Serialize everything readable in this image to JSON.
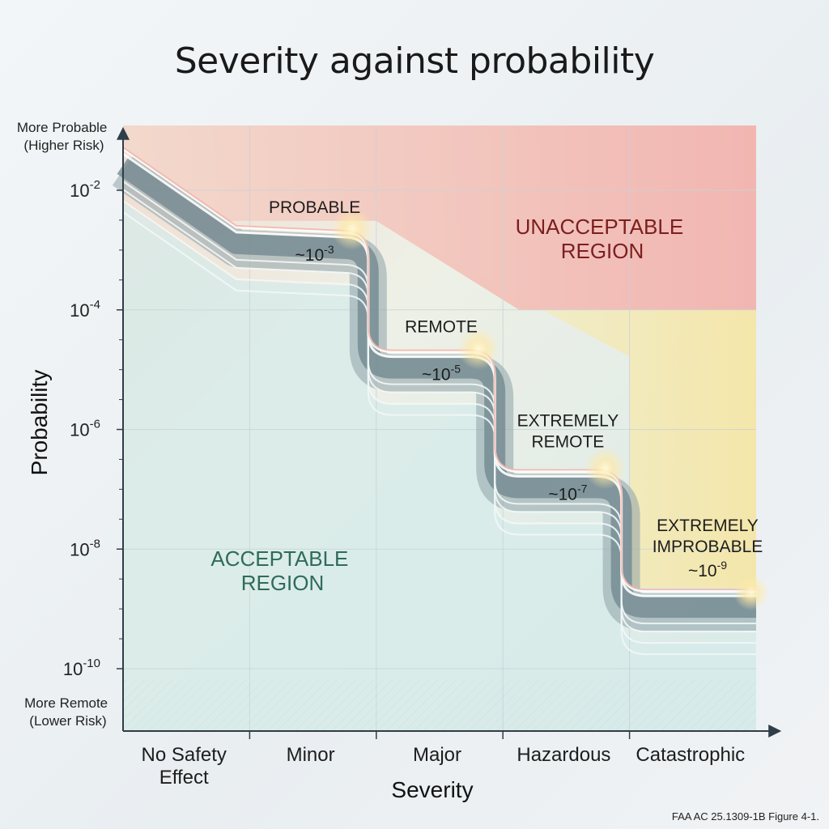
{
  "title": "Severity against probability",
  "source_note": "FAA AC 25.1309-1B Figure 4-1.",
  "colors": {
    "unacceptable": "#f4b9b4",
    "caution": "#f5e6a8",
    "acceptable": "#d5e9e8",
    "step_band": "#7e949a",
    "glow": "#fff3c4",
    "unacceptable_text": "#7a1f1f",
    "acceptable_text": "#2f6b5a"
  },
  "axes": {
    "y_title": "Probability",
    "x_title": "Severity",
    "y_top_note": [
      "More Probable",
      "(Higher Risk)"
    ],
    "y_bottom_note": [
      "More Remote",
      "(Lower Risk)"
    ],
    "y_scale": "log",
    "y_range_exponent": [
      -10.4,
      -1.0
    ],
    "y_ticks": [
      {
        "exponent": -2,
        "base": "10",
        "exp_text": "-2"
      },
      {
        "exponent": -4,
        "base": "10",
        "exp_text": "-4"
      },
      {
        "exponent": -6,
        "base": "10",
        "exp_text": "-6"
      },
      {
        "exponent": -8,
        "base": "10",
        "exp_text": "-8"
      },
      {
        "exponent": -10,
        "base": "10",
        "exp_text": "-10"
      }
    ],
    "x_categories": [
      [
        "No Safety",
        "Effect"
      ],
      [
        "Minor"
      ],
      [
        "Major"
      ],
      [
        "Hazardous"
      ],
      [
        "Catastrophic"
      ]
    ]
  },
  "regions": {
    "unacceptable": [
      "UNACCEPTABLE",
      "REGION"
    ],
    "acceptable": [
      "ACCEPTABLE",
      "REGION"
    ]
  },
  "steps": [
    {
      "category": "Minor",
      "label": [
        "PROBABLE"
      ],
      "prob_prefix": "~10",
      "prob_exp": "-3",
      "exponent": -3
    },
    {
      "category": "Major",
      "label": [
        "REMOTE"
      ],
      "prob_prefix": "~10",
      "prob_exp": "-5",
      "exponent": -5
    },
    {
      "category": "Hazardous",
      "label": [
        "EXTREMELY",
        "REMOTE"
      ],
      "prob_prefix": "~10",
      "prob_exp": "-7",
      "exponent": -7
    },
    {
      "category": "Catastrophic",
      "label": [
        "EXTREMELY",
        "IMPROBABLE"
      ],
      "prob_prefix": "~10",
      "prob_exp": "-9",
      "exponent": -9
    }
  ]
}
